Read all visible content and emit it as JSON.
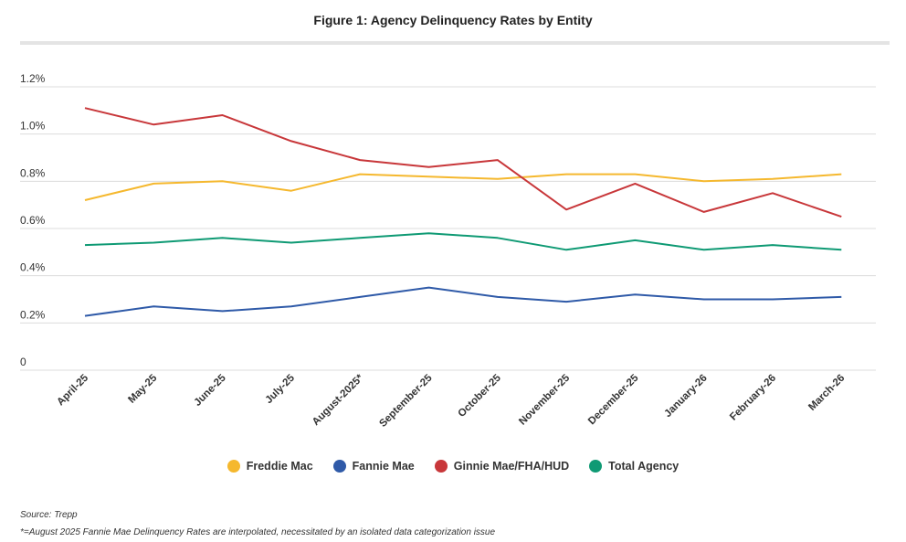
{
  "chart_data": {
    "type": "line",
    "title": "Figure 1: Agency Delinquency Rates by Entity",
    "xlabel": "",
    "ylabel": "",
    "categories": [
      "April-25",
      "May-25",
      "June-25",
      "July-25",
      "August-2025*",
      "September-25",
      "October-25",
      "November-25",
      "December-25",
      "January-26",
      "February-26",
      "March-26"
    ],
    "ylim": [
      0,
      1.2
    ],
    "yticks": [
      0,
      0.2,
      0.4,
      0.6,
      0.8,
      1.0,
      1.2
    ],
    "ytick_labels": [
      "0",
      "0.2%",
      "0.4%",
      "0.6%",
      "0.8%",
      "1.0%",
      "1.2%"
    ],
    "grid": true,
    "legend_placement": "bottom",
    "series": [
      {
        "name": "Freddie Mac",
        "color": "#f5b82e",
        "values": [
          0.72,
          0.79,
          0.8,
          0.76,
          0.83,
          0.82,
          0.81,
          0.83,
          0.83,
          0.8,
          0.81,
          0.83
        ]
      },
      {
        "name": "Fannie Mae",
        "color": "#2f5aa8",
        "values": [
          0.23,
          0.27,
          0.25,
          0.27,
          0.31,
          0.35,
          0.31,
          0.29,
          0.32,
          0.3,
          0.3,
          0.31
        ]
      },
      {
        "name": "Ginnie Mae/FHA/HUD",
        "color": "#c8373a",
        "values": [
          1.11,
          1.04,
          1.08,
          0.97,
          0.89,
          0.86,
          0.89,
          0.68,
          0.79,
          0.67,
          0.75,
          0.65
        ]
      },
      {
        "name": "Total Agency",
        "color": "#0f9a74",
        "values": [
          0.53,
          0.54,
          0.56,
          0.54,
          0.56,
          0.58,
          0.56,
          0.51,
          0.55,
          0.51,
          0.53,
          0.51
        ]
      }
    ]
  },
  "source": "Source: Trepp",
  "footnote": "*=August 2025 Fannie Mae Delinquency Rates are interpolated, necessitated by an isolated data categorization issue"
}
